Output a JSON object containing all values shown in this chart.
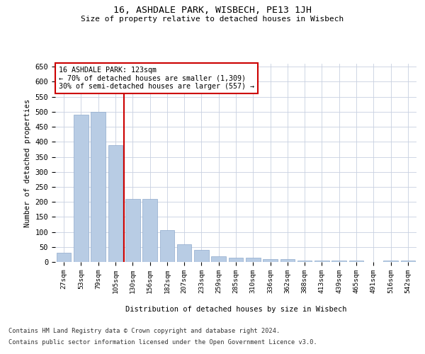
{
  "title1": "16, ASHDALE PARK, WISBECH, PE13 1JH",
  "title2": "Size of property relative to detached houses in Wisbech",
  "xlabel": "Distribution of detached houses by size in Wisbech",
  "ylabel": "Number of detached properties",
  "categories": [
    "27sqm",
    "53sqm",
    "79sqm",
    "105sqm",
    "130sqm",
    "156sqm",
    "182sqm",
    "207sqm",
    "233sqm",
    "259sqm",
    "285sqm",
    "310sqm",
    "336sqm",
    "362sqm",
    "388sqm",
    "413sqm",
    "439sqm",
    "465sqm",
    "491sqm",
    "516sqm",
    "542sqm"
  ],
  "values": [
    30,
    490,
    500,
    390,
    210,
    210,
    105,
    60,
    40,
    20,
    15,
    15,
    10,
    10,
    5,
    5,
    5,
    5,
    0,
    5,
    5
  ],
  "bar_color": "#b8cce4",
  "bar_edge_color": "#8eaacc",
  "bar_width": 0.85,
  "vline_x": 3.5,
  "vline_color": "#cc0000",
  "annotation_line1": "16 ASHDALE PARK: 123sqm",
  "annotation_line2": "← 70% of detached houses are smaller (1,309)",
  "annotation_line3": "30% of semi-detached houses are larger (557) →",
  "annotation_box_color": "#ffffff",
  "annotation_box_edge": "#cc0000",
  "ylim": [
    0,
    660
  ],
  "yticks": [
    0,
    50,
    100,
    150,
    200,
    250,
    300,
    350,
    400,
    450,
    500,
    550,
    600,
    650
  ],
  "bg_color": "#ffffff",
  "grid_color": "#c8d0e0",
  "footer1": "Contains HM Land Registry data © Crown copyright and database right 2024.",
  "footer2": "Contains public sector information licensed under the Open Government Licence v3.0."
}
